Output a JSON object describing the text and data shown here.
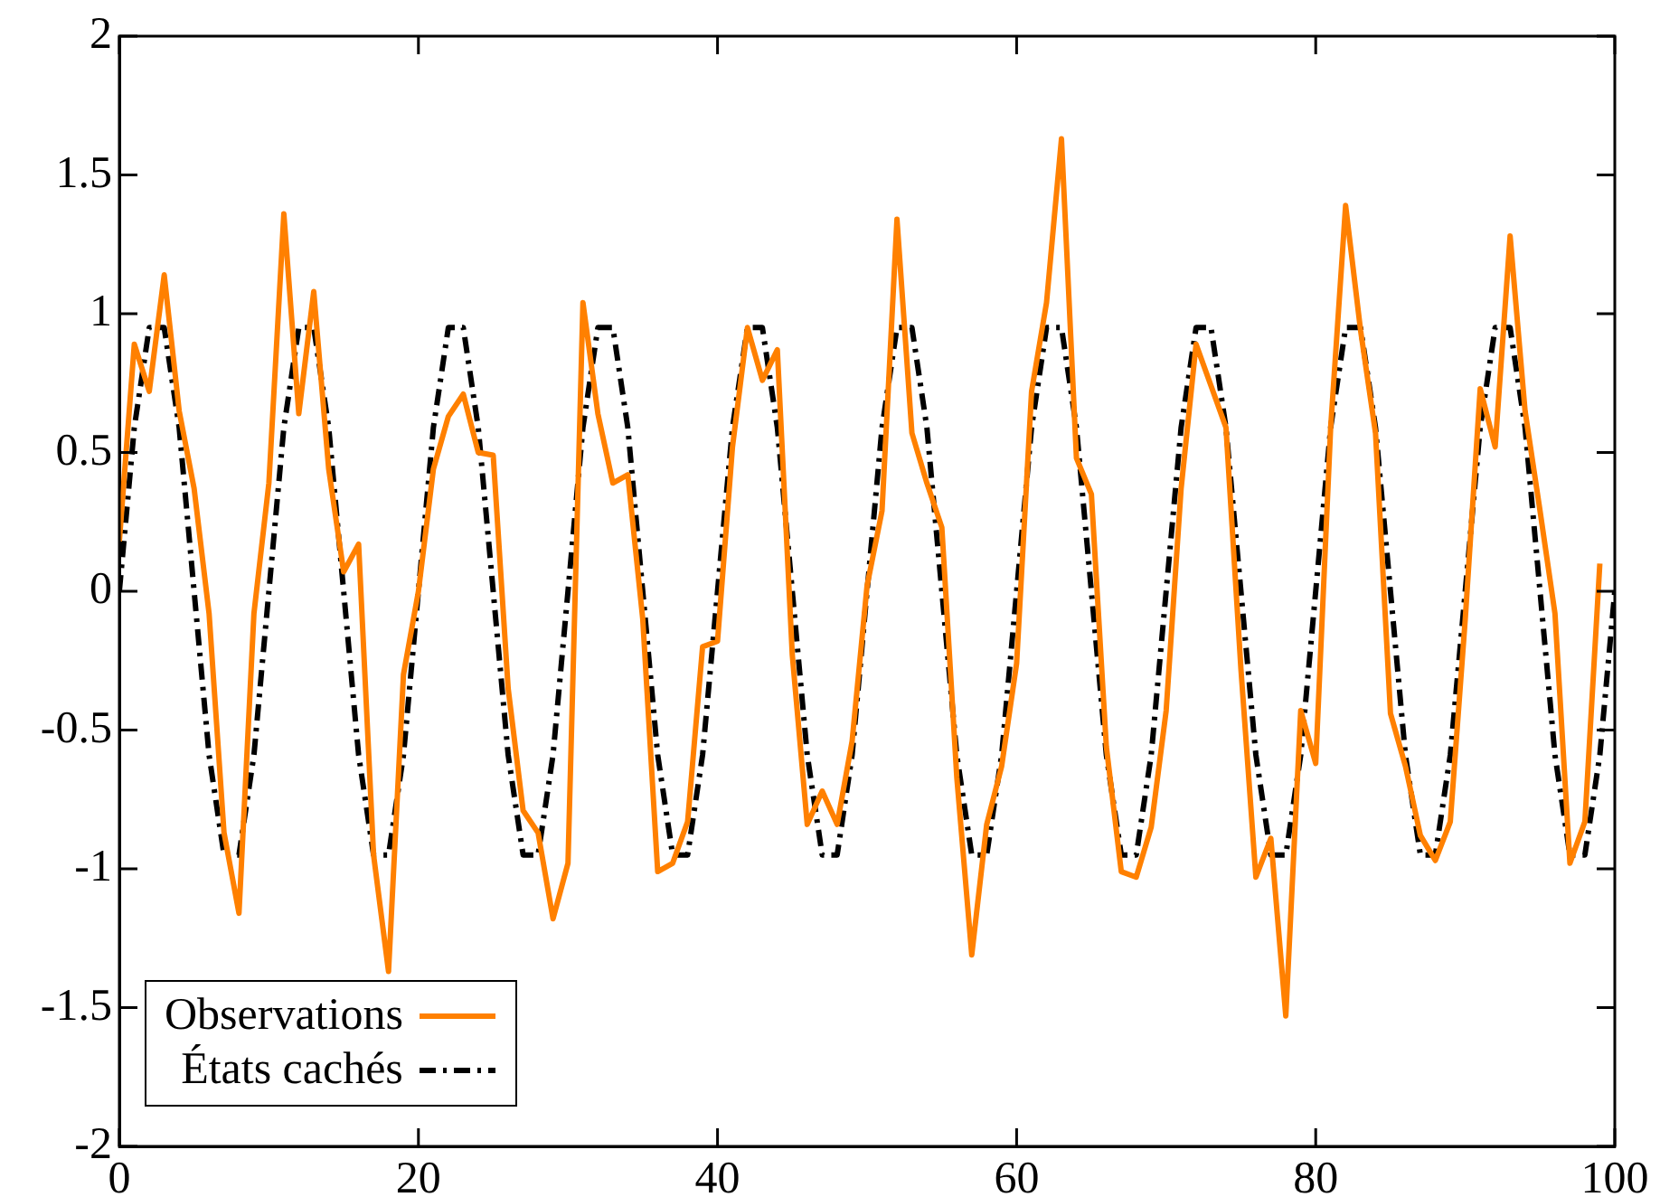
{
  "chart_data": {
    "type": "line",
    "xlim": [
      0,
      100
    ],
    "ylim": [
      -2,
      2
    ],
    "xticks": [
      0,
      20,
      40,
      60,
      80,
      100
    ],
    "yticks": [
      -2,
      -1.5,
      -1,
      -0.5,
      0,
      0.5,
      1,
      1.5,
      2
    ],
    "grid": false,
    "legend": "bottom left",
    "marker": "none",
    "series": [
      {
        "name": "Observations",
        "color": "#ff8000",
        "line_style": "solid",
        "x": [
          0,
          1,
          2,
          3,
          4,
          5,
          6,
          7,
          8,
          9,
          10,
          11,
          12,
          13,
          14,
          15,
          16,
          17,
          18,
          19,
          20,
          21,
          22,
          23,
          24,
          25,
          26,
          27,
          28,
          29,
          30,
          31,
          32,
          33,
          34,
          35,
          36,
          37,
          38,
          39,
          40,
          41,
          42,
          43,
          44,
          45,
          46,
          47,
          48,
          49,
          50,
          51,
          52,
          53,
          54,
          55,
          56,
          57,
          58,
          59,
          60,
          61,
          62,
          63,
          64,
          65,
          66,
          67,
          68,
          69,
          70,
          71,
          72,
          73,
          74,
          75,
          76,
          77,
          78,
          79,
          80,
          81,
          82,
          83,
          84,
          85,
          86,
          87,
          88,
          89,
          90,
          91,
          92,
          93,
          94,
          95,
          96,
          97,
          98,
          99
        ],
        "values": [
          0.18,
          0.89,
          0.72,
          1.14,
          0.65,
          0.37,
          -0.08,
          -0.87,
          -1.16,
          -0.08,
          0.39,
          1.36,
          0.64,
          1.08,
          0.44,
          0.07,
          0.17,
          -0.95,
          -1.37,
          -0.3,
          0.0,
          0.44,
          0.63,
          0.71,
          0.5,
          0.49,
          -0.35,
          -0.79,
          -0.87,
          -1.18,
          -0.98,
          1.04,
          0.64,
          0.39,
          0.42,
          -0.1,
          -1.01,
          -0.98,
          -0.83,
          -0.2,
          -0.18,
          0.52,
          0.95,
          0.76,
          0.87,
          -0.23,
          -0.84,
          -0.72,
          -0.84,
          -0.54,
          0.02,
          0.29,
          1.34,
          0.57,
          0.39,
          0.23,
          -0.67,
          -1.31,
          -0.84,
          -0.63,
          -0.26,
          0.72,
          1.04,
          1.63,
          0.48,
          0.35,
          -0.56,
          -1.01,
          -1.03,
          -0.85,
          -0.43,
          0.37,
          0.89,
          0.74,
          0.59,
          -0.28,
          -1.03,
          -0.89,
          -1.53,
          -0.43,
          -0.62,
          0.59,
          1.39,
          0.94,
          0.57,
          -0.44,
          -0.63,
          -0.88,
          -0.97,
          -0.83,
          -0.1,
          0.73,
          0.52,
          1.28,
          0.65,
          0.29,
          -0.08,
          -0.98,
          -0.83,
          0.1
        ]
      },
      {
        "name": "États cachés",
        "color": "#000000",
        "line_style": "dashdot",
        "x": [
          0,
          1,
          2,
          3,
          4,
          5,
          6,
          7,
          8,
          9,
          10,
          11,
          12,
          13,
          14,
          15,
          16,
          17,
          18,
          19,
          20,
          21,
          22,
          23,
          24,
          25,
          26,
          27,
          28,
          29,
          30,
          31,
          32,
          33,
          34,
          35,
          36,
          37,
          38,
          39,
          40,
          41,
          42,
          43,
          44,
          45,
          46,
          47,
          48,
          49,
          50,
          51,
          52,
          53,
          54,
          55,
          56,
          57,
          58,
          59,
          60,
          61,
          62,
          63,
          64,
          65,
          66,
          67,
          68,
          69,
          70,
          71,
          72,
          73,
          74,
          75,
          76,
          77,
          78,
          79,
          80,
          81,
          82,
          83,
          84,
          85,
          86,
          87,
          88,
          89,
          90,
          91,
          92,
          93,
          94,
          95,
          96,
          97,
          98,
          99,
          100
        ],
        "values": [
          0,
          0.59,
          0.95,
          0.95,
          0.59,
          0,
          -0.59,
          -0.95,
          -0.95,
          -0.59,
          0,
          0.59,
          0.95,
          0.95,
          0.59,
          0,
          -0.59,
          -0.95,
          -0.95,
          -0.59,
          0,
          0.59,
          0.95,
          0.95,
          0.59,
          0,
          -0.59,
          -0.95,
          -0.95,
          -0.59,
          0,
          0.59,
          0.95,
          0.95,
          0.59,
          0,
          -0.59,
          -0.95,
          -0.95,
          -0.59,
          0,
          0.59,
          0.95,
          0.95,
          0.59,
          0,
          -0.59,
          -0.95,
          -0.95,
          -0.59,
          0,
          0.59,
          0.95,
          0.95,
          0.59,
          0,
          -0.59,
          -0.95,
          -0.95,
          -0.59,
          0,
          0.59,
          0.95,
          0.95,
          0.59,
          0,
          -0.59,
          -0.95,
          -0.95,
          -0.59,
          0,
          0.59,
          0.95,
          0.95,
          0.59,
          0,
          -0.59,
          -0.95,
          -0.95,
          -0.59,
          0,
          0.59,
          0.95,
          0.95,
          0.59,
          0,
          -0.59,
          -0.95,
          -0.95,
          -0.59,
          0,
          0.59,
          0.95,
          0.95,
          0.59,
          0,
          -0.59,
          -0.95,
          -0.95,
          -0.59,
          0
        ]
      }
    ]
  }
}
